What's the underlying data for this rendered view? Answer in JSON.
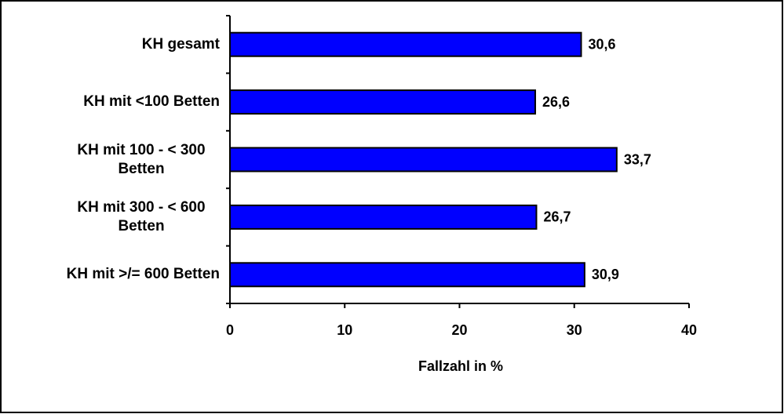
{
  "chart_data": {
    "type": "hbar",
    "categories": [
      "KH gesamt",
      "KH mit <100 Betten",
      "KH mit 100 - < 300 Betten",
      "KH mit 300 - < 600 Betten",
      "KH mit >/= 600 Betten"
    ],
    "values": [
      30.6,
      26.6,
      33.7,
      26.7,
      30.9
    ],
    "value_labels": [
      "30,6",
      "26,6",
      "33,7",
      "26,7",
      "30,9"
    ],
    "color": "#0000ff",
    "xlabel": "Fallzahl in %",
    "xlim": [
      0,
      40
    ],
    "xticks": [
      0,
      10,
      20,
      30,
      40
    ]
  }
}
